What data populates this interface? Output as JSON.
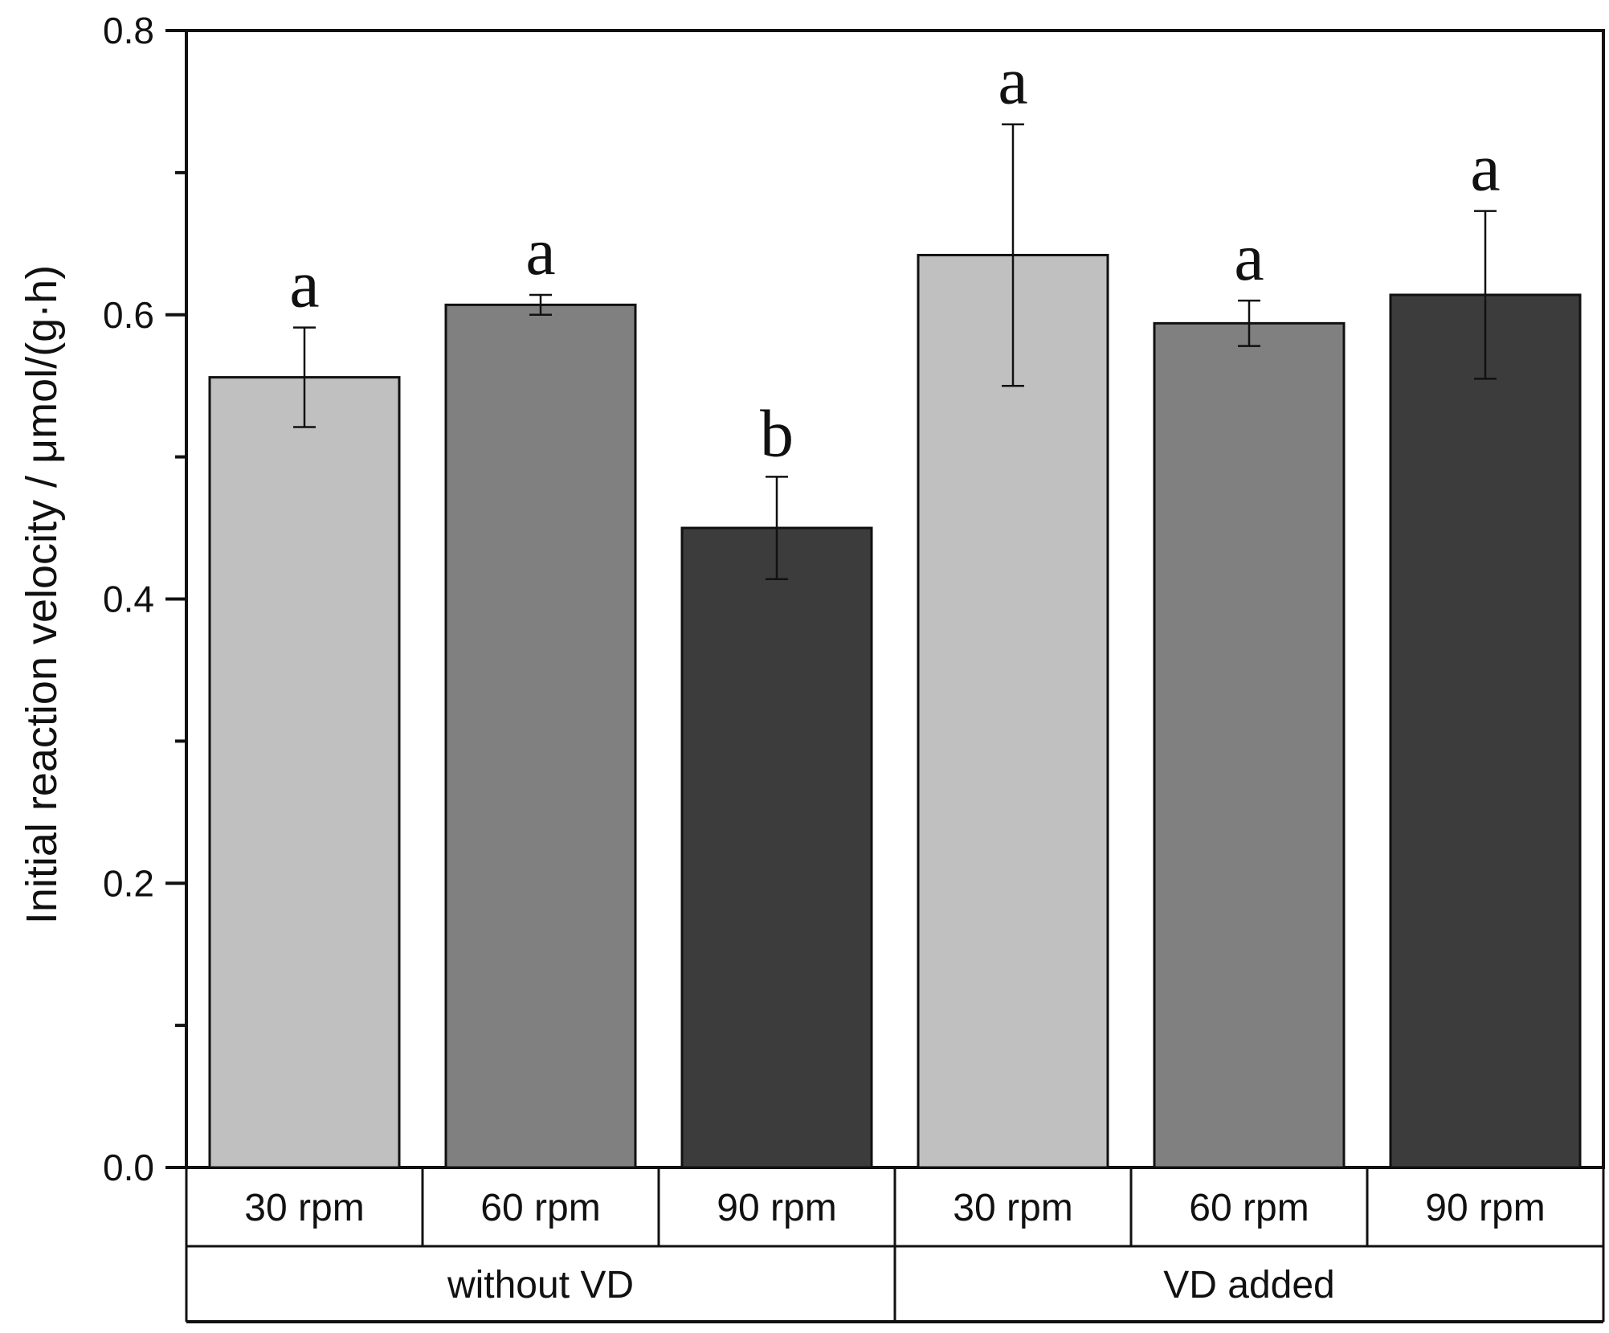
{
  "chart_data": {
    "type": "bar",
    "title": "",
    "xlabel": "",
    "ylabel": "Initial reaction velocity / μmol/(g·h)",
    "ylim": [
      0,
      0.8
    ],
    "yticks": [
      "0.0",
      "0.2",
      "0.4",
      "0.6",
      "0.8"
    ],
    "ytick_values": [
      0,
      0.2,
      0.4,
      0.6,
      0.8
    ],
    "groups": [
      {
        "label": "without VD",
        "categories": [
          "30 rpm",
          "60 rpm",
          "90 rpm"
        ],
        "values": [
          0.556,
          0.607,
          0.45
        ],
        "errors": [
          0.035,
          0.007,
          0.036
        ],
        "significance": [
          "a",
          "a",
          "b"
        ]
      },
      {
        "label": "VD added",
        "categories": [
          "30 rpm",
          "60 rpm",
          "90 rpm"
        ],
        "values": [
          0.642,
          0.594,
          0.614
        ],
        "errors": [
          0.092,
          0.016,
          0.059
        ],
        "significance": [
          "a",
          "a",
          "a"
        ]
      }
    ],
    "colors": {
      "30 rpm": "#c0c0c0",
      "60 rpm": "#808080",
      "90 rpm": "#3c3c3c"
    }
  }
}
